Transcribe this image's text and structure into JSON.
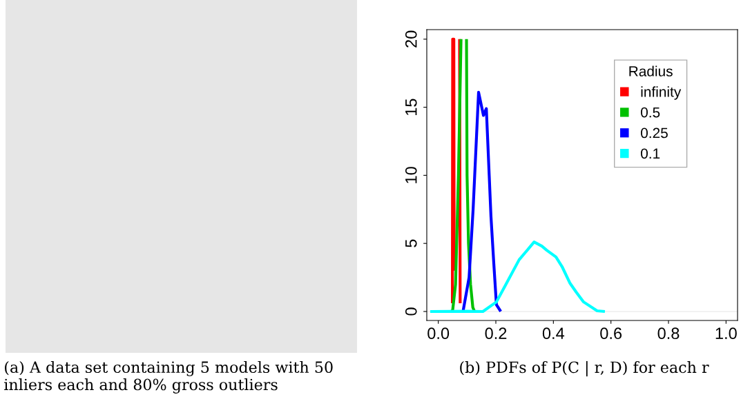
{
  "chart_data": [
    {
      "type": "other",
      "annotations": [
        "(a) A data set containing 5 models with 50 inliers each and 80% gross outliers"
      ]
    },
    {
      "type": "line",
      "legend_title": "Radius",
      "legend": "top right",
      "grid": false,
      "marker": "none",
      "line_style": "solid",
      "xlim": [
        -0.04,
        1.04
      ],
      "ylim": [
        -0.66,
        20.7
      ],
      "xticks": [
        {
          "value": 0,
          "label": "0.0"
        },
        {
          "value": 0.2,
          "label": "0.2"
        },
        {
          "value": 0.4,
          "label": "0.4"
        },
        {
          "value": 0.6,
          "label": "0.6"
        },
        {
          "value": 0.8,
          "label": "0.8"
        },
        {
          "value": 1,
          "label": "1.0"
        }
      ],
      "yticks": [
        0,
        5,
        10,
        15,
        20
      ],
      "ref_lines": [
        {
          "axis": "y",
          "value": 0,
          "color": "#eeeeee"
        }
      ],
      "annotations": [
        "(b) PDFs of P(C | r, D) for each r"
      ],
      "series": [
        {
          "name": "infinity",
          "color": "#ff0000",
          "x": [
            0.049,
            0.05,
            0.054,
            0.055,
            null,
            0.074,
            0.076
          ],
          "values": [
            0.6,
            20,
            20,
            3,
            null,
            20,
            0.6
          ]
        },
        {
          "name": "0.5",
          "color": "#00c000",
          "x": [
            0.045,
            0.05,
            0.06,
            0.07,
            0.079,
            null,
            0.098,
            0.1,
            0.105,
            0.112,
            0.12,
            0.126
          ],
          "values": [
            0,
            0.1,
            2,
            10,
            20,
            null,
            20,
            10,
            5,
            2,
            0.3,
            0
          ]
        },
        {
          "name": "0.25",
          "color": "#0000ff",
          "x": [
            0.086,
            0.107,
            0.121,
            0.14,
            0.157,
            0.167,
            0.183,
            0.193,
            0.202,
            0.217
          ],
          "values": [
            0,
            2.5,
            7.5,
            16.1,
            14.4,
            14.9,
            7,
            3.5,
            0.5,
            0
          ]
        },
        {
          "name": "0.1",
          "color": "#00ffff",
          "x": [
            -0.028,
            0.1,
            0.155,
            0.202,
            0.23,
            0.281,
            0.333,
            0.36,
            0.377,
            0.409,
            0.43,
            0.457,
            0.48,
            0.505,
            0.552,
            0.579
          ],
          "values": [
            0,
            0.02,
            0.0,
            0.7,
            1.8,
            3.8,
            5.1,
            4.8,
            4.5,
            4.0,
            3.3,
            2.1,
            1.4,
            0.7,
            0.05,
            0
          ]
        }
      ]
    }
  ]
}
